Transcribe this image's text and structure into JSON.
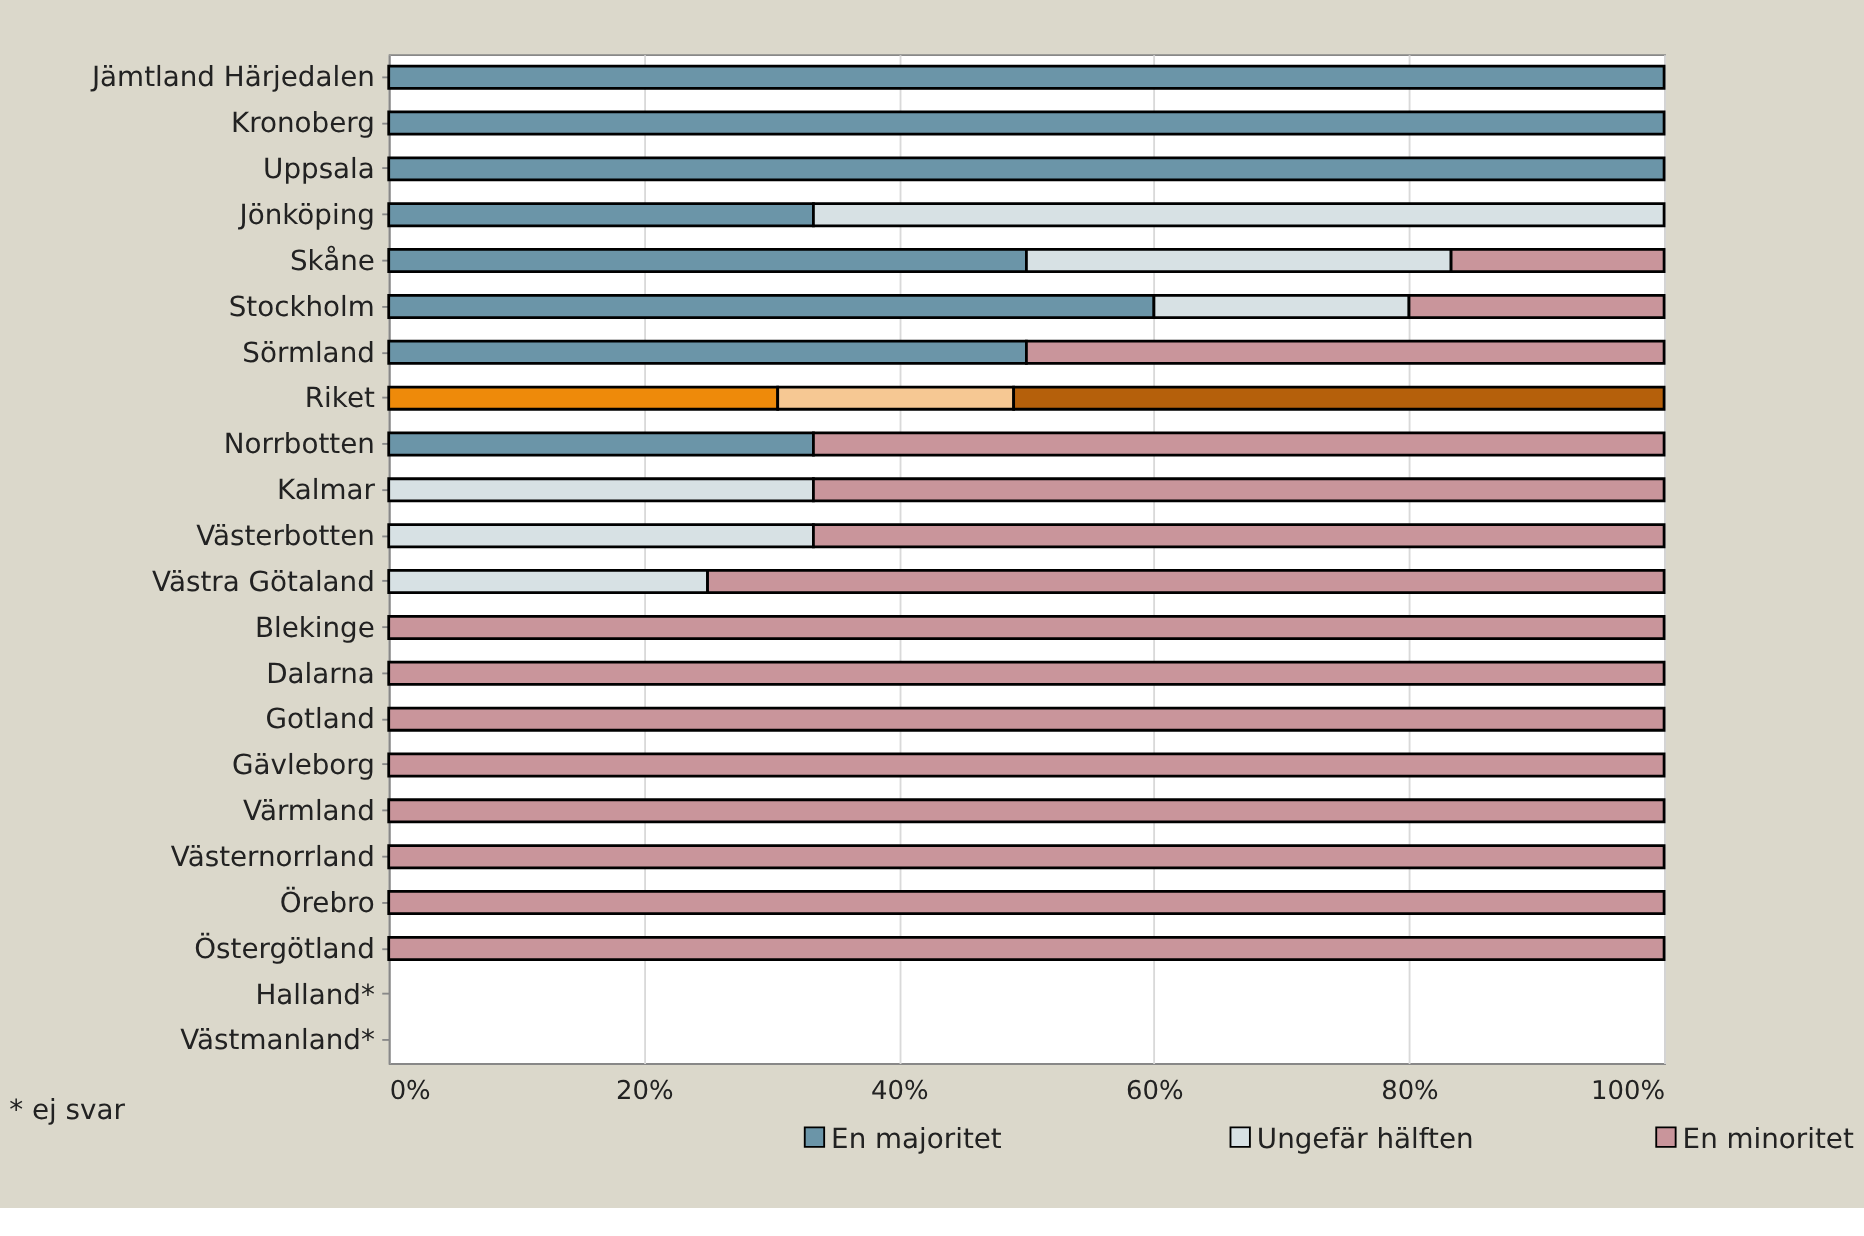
{
  "chart_data": {
    "type": "bar",
    "orientation": "horizontal",
    "stacked": true,
    "categories": [
      "Jämtland Härjedalen",
      "Kronoberg",
      "Uppsala",
      "Jönköping",
      "Skåne",
      "Stockholm",
      "Sörmland",
      "Riket",
      "Norrbotten",
      "Kalmar",
      "Västerbotten",
      "Västra Götaland",
      "Blekinge",
      "Dalarna",
      "Gotland",
      "Gävleborg",
      "Värmland",
      "Västernorrland",
      "Örebro",
      "Östergötland",
      "Halland*",
      "Västmanland*"
    ],
    "series": [
      {
        "name": "En majoritet",
        "color": "#6b95a8",
        "colors": [
          "#6b95a8",
          "#6b95a8",
          "#6b95a8",
          "#6b95a8",
          "#6b95a8",
          "#6b95a8",
          "#6b95a8",
          "#ee8a0a",
          "#6b95a8",
          "#6b95a8",
          "#6b95a8",
          "#6b95a8",
          "#6b95a8",
          "#6b95a8",
          "#6b95a8",
          "#6b95a8",
          "#6b95a8",
          "#6b95a8",
          "#6b95a8",
          "#6b95a8",
          "#6b95a8",
          "#6b95a8"
        ],
        "values": [
          100,
          100,
          100,
          33.3,
          50,
          60,
          50,
          30.5,
          33.3,
          0,
          0,
          0,
          0,
          0,
          0,
          0,
          0,
          0,
          0,
          0,
          null,
          null
        ]
      },
      {
        "name": "Ungefär hälften",
        "color": "#d7e1e4",
        "colors": [
          "#d7e1e4",
          "#d7e1e4",
          "#d7e1e4",
          "#d7e1e4",
          "#d7e1e4",
          "#d7e1e4",
          "#d7e1e4",
          "#f6c893",
          "#d7e1e4",
          "#d7e1e4",
          "#d7e1e4",
          "#d7e1e4",
          "#d7e1e4",
          "#d7e1e4",
          "#d7e1e4",
          "#d7e1e4",
          "#d7e1e4",
          "#d7e1e4",
          "#d7e1e4",
          "#d7e1e4",
          "#d7e1e4",
          "#d7e1e4"
        ],
        "values": [
          0,
          0,
          0,
          66.7,
          33.3,
          20,
          0,
          18.5,
          0,
          33.3,
          33.3,
          25,
          0,
          0,
          0,
          0,
          0,
          0,
          0,
          0,
          null,
          null
        ]
      },
      {
        "name": "En minoritet",
        "color": "#c9959b",
        "colors": [
          "#c9959b",
          "#c9959b",
          "#c9959b",
          "#c9959b",
          "#c9959b",
          "#c9959b",
          "#c9959b",
          "#b5600b",
          "#c9959b",
          "#c9959b",
          "#c9959b",
          "#c9959b",
          "#c9959b",
          "#c9959b",
          "#c9959b",
          "#c9959b",
          "#c9959b",
          "#c9959b",
          "#c9959b",
          "#c9959b",
          "#c9959b",
          "#c9959b"
        ],
        "values": [
          0,
          0,
          0,
          0,
          16.7,
          20,
          50,
          51,
          66.7,
          66.7,
          66.7,
          75,
          100,
          100,
          100,
          100,
          100,
          100,
          100,
          100,
          null,
          null
        ]
      }
    ],
    "xlim": [
      0,
      100
    ],
    "xticks": [
      {
        "value": 0,
        "label": "0%"
      },
      {
        "value": 20,
        "label": "20%"
      },
      {
        "value": 40,
        "label": "40%"
      },
      {
        "value": 60,
        "label": "60%"
      },
      {
        "value": 80,
        "label": "80%"
      },
      {
        "value": 100,
        "label": "100%"
      }
    ],
    "grid": "x",
    "legend": "bottom",
    "annotations": [
      "* ej svar"
    ]
  }
}
